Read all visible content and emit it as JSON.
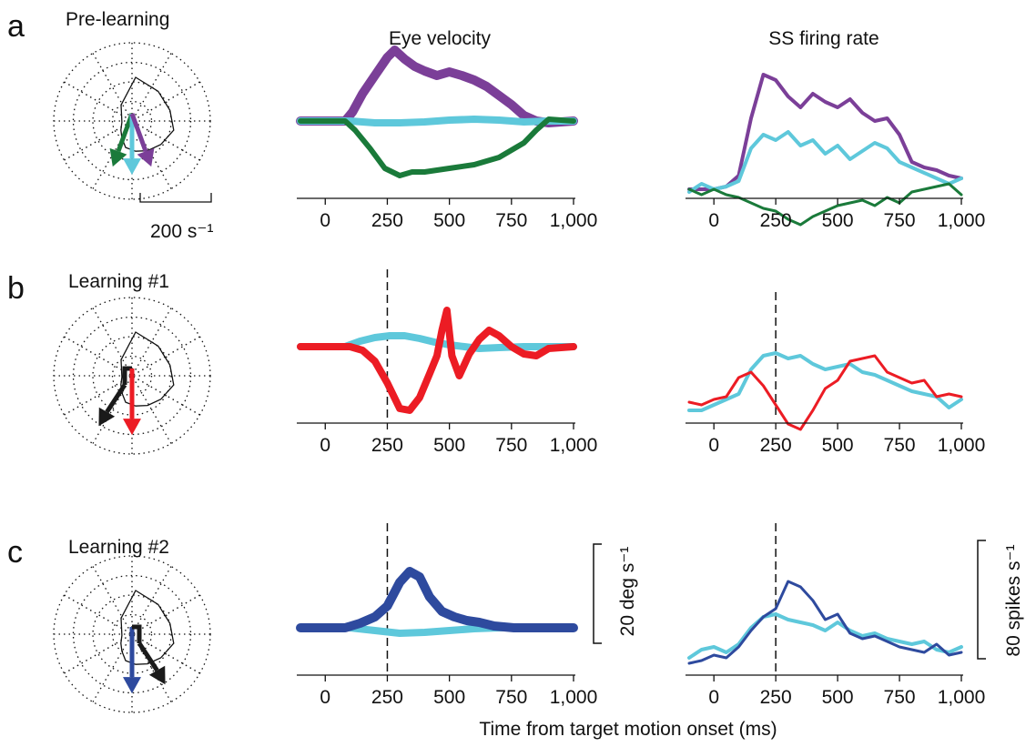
{
  "figure": {
    "column_titles": [
      "Eye velocity",
      "SS firing rate"
    ],
    "xlabel": "Time from target motion onset (ms)",
    "polar_scale_label": "200 s⁻¹",
    "eye_scale_label": "20 deg s⁻¹",
    "ss_scale_label": "80 spikes s⁻¹"
  },
  "colors": {
    "purple": "#7b3f98",
    "cyan": "#5ec8db",
    "green": "#1a7a3a",
    "red": "#ec1c24",
    "blue": "#2e4a9e",
    "black": "#1a1a1a"
  },
  "rows": [
    {
      "letter": "a",
      "title": "Pre-learning",
      "dashed_time": null,
      "arrows": [
        {
          "color": "green",
          "angle": 200,
          "length": 0.72
        },
        {
          "color": "cyan",
          "angle": 180,
          "length": 0.78
        },
        {
          "color": "purple",
          "angle": 160,
          "length": 0.72
        }
      ]
    },
    {
      "letter": "b",
      "title": "Learning #1",
      "dashed_time": 250,
      "arrows": [
        {
          "color": "black",
          "angle": 210,
          "length": 0.85,
          "kink": true,
          "kink_side": -1
        },
        {
          "color": "red",
          "angle": 180,
          "length": 0.85
        }
      ]
    },
    {
      "letter": "c",
      "title": "Learning #2",
      "dashed_time": 250,
      "arrows": [
        {
          "color": "blue",
          "angle": 180,
          "length": 0.85
        },
        {
          "color": "black",
          "angle": 150,
          "length": 0.85,
          "kink": true,
          "kink_side": 1
        }
      ]
    }
  ],
  "chart_data": [
    {
      "type": "line",
      "panel": "a",
      "title": "Eye velocity",
      "x_ticks": [
        "0",
        "250",
        "500",
        "750",
        "1,000"
      ],
      "xlim": [
        -100,
        1000
      ],
      "series": [
        {
          "color": "purple",
          "width": 10,
          "x": [
            -100,
            80,
            110,
            150,
            200,
            250,
            280,
            320,
            360,
            400,
            450,
            500,
            550,
            600,
            650,
            700,
            750,
            800,
            850,
            900,
            1000
          ],
          "y": [
            0,
            0,
            2,
            6,
            10,
            14,
            15.6,
            13.6,
            12,
            11,
            10,
            10.8,
            10,
            9,
            7.6,
            5.6,
            3.6,
            1.2,
            0,
            -0.4,
            0
          ]
        },
        {
          "color": "cyan",
          "width": 8,
          "x": [
            -100,
            100,
            200,
            300,
            400,
            500,
            600,
            700,
            800,
            900,
            1000
          ],
          "y": [
            0,
            0,
            -0.4,
            -0.4,
            -0.2,
            0.2,
            0.4,
            0.2,
            -0.2,
            0,
            0
          ]
        },
        {
          "color": "green",
          "width": 6,
          "x": [
            -100,
            80,
            120,
            180,
            240,
            300,
            350,
            400,
            500,
            600,
            700,
            800,
            850,
            900,
            1000
          ],
          "y": [
            0,
            0,
            -2,
            -6,
            -10.4,
            -12,
            -11.2,
            -11.2,
            -10.4,
            -9.6,
            -8,
            -4.8,
            -2,
            0.4,
            0
          ]
        }
      ]
    },
    {
      "type": "line",
      "panel": "a",
      "title": "SS firing rate",
      "x_ticks": [
        "0",
        "250",
        "500",
        "750",
        "1,000"
      ],
      "xlim": [
        -100,
        1000
      ],
      "series": [
        {
          "color": "purple",
          "width": 4,
          "x": [
            -100,
            -50,
            0,
            50,
            100,
            150,
            200,
            250,
            300,
            350,
            400,
            450,
            500,
            550,
            600,
            650,
            700,
            750,
            800,
            850,
            900,
            950,
            1000
          ],
          "y": [
            -20,
            -20,
            -20,
            -18,
            -10,
            32,
            64,
            60,
            48,
            40,
            50,
            44,
            40,
            46,
            36,
            30,
            32,
            20,
            0,
            -4,
            -6,
            -10,
            -12
          ]
        },
        {
          "color": "cyan",
          "width": 4,
          "x": [
            -100,
            -50,
            0,
            50,
            100,
            150,
            200,
            250,
            300,
            350,
            400,
            450,
            500,
            550,
            600,
            650,
            700,
            750,
            800,
            850,
            900,
            950,
            1000
          ],
          "y": [
            -22,
            -16,
            -20,
            -18,
            -14,
            10,
            20,
            16,
            22,
            12,
            16,
            6,
            12,
            2,
            8,
            14,
            10,
            0,
            -4,
            -8,
            -12,
            -16,
            -12
          ]
        },
        {
          "color": "green",
          "width": 3,
          "x": [
            -100,
            -50,
            0,
            50,
            100,
            150,
            200,
            250,
            300,
            350,
            400,
            450,
            500,
            550,
            600,
            650,
            700,
            750,
            800,
            850,
            900,
            950,
            1000
          ],
          "y": [
            -20,
            -24,
            -20,
            -24,
            -26,
            -30,
            -34,
            -36,
            -42,
            -46,
            -40,
            -36,
            -32,
            -30,
            -28,
            -32,
            -26,
            -30,
            -22,
            -20,
            -18,
            -16,
            -24
          ]
        }
      ]
    },
    {
      "type": "line",
      "panel": "b",
      "title": "Eye velocity",
      "x_ticks": [
        "0",
        "250",
        "500",
        "750",
        "1,000"
      ],
      "xlim": [
        -100,
        1000
      ],
      "series": [
        {
          "color": "cyan",
          "width": 8,
          "x": [
            -100,
            80,
            140,
            200,
            260,
            320,
            380,
            440,
            500,
            560,
            620,
            700,
            800,
            900,
            1000
          ],
          "y": [
            0,
            0,
            1.2,
            2,
            2.4,
            2.4,
            1.8,
            1,
            0.4,
            0,
            -0.4,
            -0.2,
            0,
            0,
            0
          ]
        },
        {
          "color": "red",
          "width": 8,
          "x": [
            -100,
            100,
            150,
            200,
            250,
            300,
            340,
            380,
            420,
            450,
            470,
            490,
            510,
            540,
            580,
            620,
            660,
            700,
            750,
            800,
            850,
            900,
            1000
          ],
          "y": [
            0,
            0,
            -0.8,
            -3.2,
            -8,
            -13.6,
            -14,
            -11.2,
            -6,
            -2,
            3.6,
            8,
            -2,
            -6.4,
            -1.6,
            1.6,
            3.6,
            2.4,
            0,
            -1.6,
            -2,
            -0.4,
            0
          ]
        }
      ]
    },
    {
      "type": "line",
      "panel": "b",
      "title": "SS firing rate",
      "x_ticks": [
        "0",
        "250",
        "500",
        "750",
        "1,000"
      ],
      "xlim": [
        -100,
        1000
      ],
      "series": [
        {
          "color": "cyan",
          "width": 4,
          "x": [
            -100,
            -50,
            0,
            50,
            100,
            150,
            200,
            250,
            300,
            350,
            400,
            450,
            500,
            550,
            600,
            650,
            700,
            750,
            800,
            850,
            900,
            950,
            1000
          ],
          "y": [
            -30,
            -30,
            -26,
            -22,
            -18,
            0,
            10,
            12,
            8,
            10,
            4,
            0,
            2,
            4,
            -2,
            -4,
            -8,
            -12,
            -16,
            -18,
            -20,
            -28,
            -22
          ]
        },
        {
          "color": "red",
          "width": 3,
          "x": [
            -100,
            -50,
            0,
            50,
            100,
            150,
            200,
            250,
            300,
            350,
            400,
            450,
            500,
            550,
            600,
            650,
            700,
            750,
            800,
            850,
            900,
            950,
            1000
          ],
          "y": [
            -24,
            -26,
            -22,
            -20,
            -6,
            -2,
            -12,
            -26,
            -40,
            -44,
            -30,
            -14,
            -8,
            6,
            8,
            10,
            -2,
            -6,
            -10,
            -8,
            -20,
            -18,
            -20
          ]
        }
      ]
    },
    {
      "type": "line",
      "panel": "c",
      "title": "Eye velocity",
      "x_ticks": [
        "0",
        "250",
        "500",
        "750",
        "1,000"
      ],
      "xlim": [
        -100,
        1000
      ],
      "series": [
        {
          "color": "cyan",
          "width": 8,
          "x": [
            -100,
            100,
            200,
            300,
            400,
            500,
            600,
            700,
            800,
            900,
            1000
          ],
          "y": [
            0,
            0,
            -0.6,
            -1.2,
            -1,
            -0.6,
            -0.2,
            0,
            0,
            0,
            0
          ]
        },
        {
          "color": "blue",
          "width": 10,
          "x": [
            -100,
            80,
            140,
            200,
            250,
            300,
            340,
            380,
            420,
            470,
            520,
            570,
            620,
            680,
            760,
            850,
            1000
          ],
          "y": [
            0,
            0,
            1,
            2.4,
            4.8,
            10,
            12.4,
            11.2,
            6.8,
            3.6,
            2.4,
            1.6,
            1.2,
            0.4,
            0,
            0,
            0
          ]
        }
      ]
    },
    {
      "type": "line",
      "panel": "c",
      "title": "SS firing rate",
      "x_ticks": [
        "0",
        "250",
        "500",
        "750",
        "1,000"
      ],
      "xlim": [
        -100,
        1000
      ],
      "series": [
        {
          "color": "cyan",
          "width": 4,
          "x": [
            -100,
            -50,
            0,
            50,
            100,
            150,
            200,
            250,
            300,
            350,
            400,
            450,
            500,
            550,
            600,
            650,
            700,
            750,
            800,
            850,
            900,
            950,
            1000
          ],
          "y": [
            -22,
            -16,
            -14,
            -18,
            -12,
            0,
            8,
            10,
            6,
            4,
            2,
            -2,
            4,
            -2,
            -6,
            -4,
            -8,
            -10,
            -12,
            -10,
            -16,
            -18,
            -14
          ]
        },
        {
          "color": "blue",
          "width": 3,
          "x": [
            -100,
            -50,
            0,
            50,
            100,
            150,
            200,
            250,
            300,
            350,
            400,
            450,
            500,
            550,
            600,
            650,
            700,
            750,
            800,
            850,
            900,
            950,
            1000
          ],
          "y": [
            -26,
            -24,
            -20,
            -22,
            -14,
            -2,
            8,
            14,
            34,
            30,
            20,
            6,
            10,
            -4,
            -8,
            -6,
            -10,
            -14,
            -16,
            -18,
            -12,
            -20,
            -18
          ]
        }
      ]
    }
  ]
}
